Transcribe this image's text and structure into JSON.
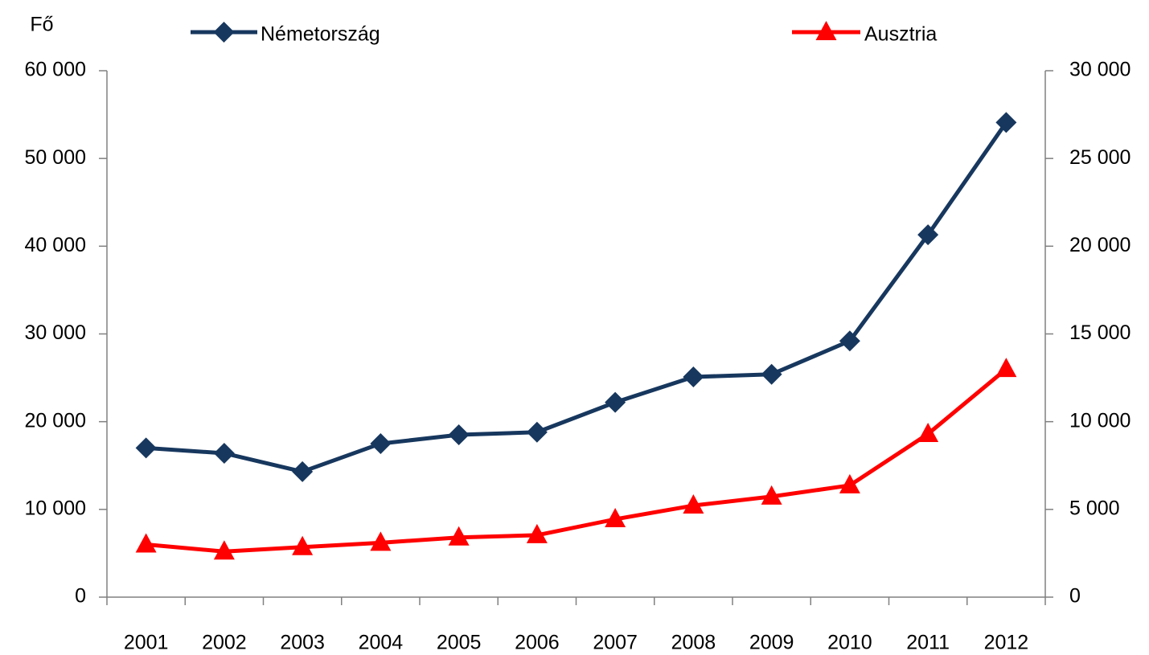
{
  "chart_data": {
    "type": "line",
    "y_label": "Fő",
    "categories": [
      "2001",
      "2002",
      "2003",
      "2004",
      "2005",
      "2006",
      "2007",
      "2008",
      "2009",
      "2010",
      "2011",
      "2012"
    ],
    "series": [
      {
        "name": "Németország",
        "color": "#17375e",
        "marker": "diamond",
        "axis": "y",
        "values": [
          17000,
          16400,
          14300,
          17500,
          18500,
          18800,
          22200,
          25100,
          25400,
          29200,
          41300,
          54100
        ]
      },
      {
        "name": "Ausztria",
        "color": "#ff0000",
        "marker": "triangle",
        "axis": "y2",
        "values": [
          3000,
          2600,
          2850,
          3100,
          3400,
          3530,
          4440,
          5220,
          5730,
          6370,
          9300,
          13000
        ]
      }
    ],
    "ylim": [
      0,
      60000
    ],
    "yticks": [
      0,
      {
        "value": 10000,
        "label": "10 000"
      },
      {
        "value": 20000,
        "label": "20 000"
      },
      {
        "value": 30000,
        "label": "30 000"
      },
      {
        "value": 40000,
        "label": "40 000"
      },
      {
        "value": 50000,
        "label": "50 000"
      },
      {
        "value": 60000,
        "label": "60 000"
      }
    ],
    "y2lim": [
      0,
      30000
    ],
    "y2ticks": [
      0,
      {
        "value": 5000,
        "label": "5 000"
      },
      {
        "value": 10000,
        "label": "10 000"
      },
      {
        "value": 15000,
        "label": "15 000"
      },
      {
        "value": 20000,
        "label": "20 000"
      },
      {
        "value": 25000,
        "label": "25 000"
      },
      {
        "value": 30000,
        "label": "30 000"
      }
    ],
    "legend": "top",
    "grid": false
  }
}
